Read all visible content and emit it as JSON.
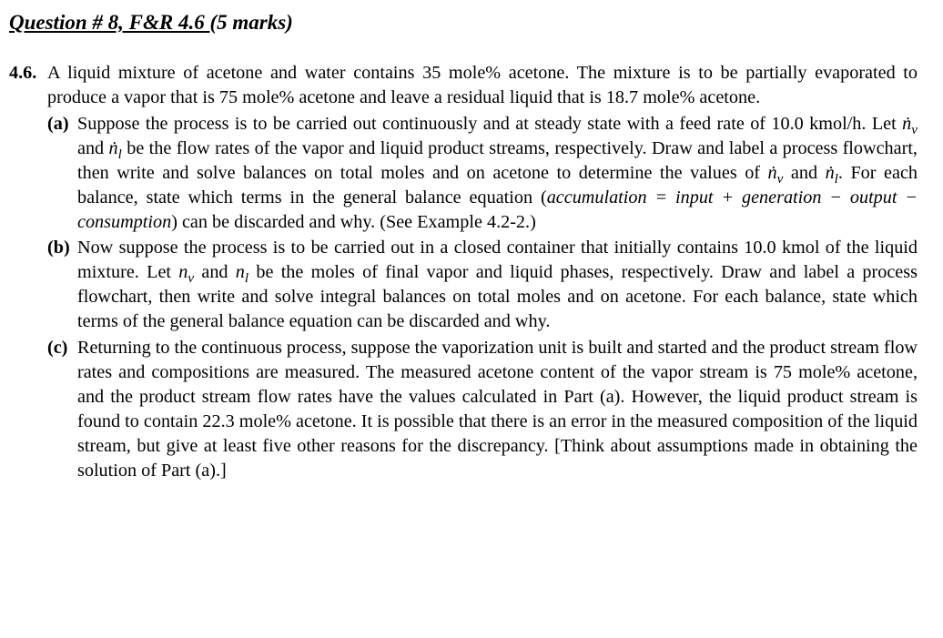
{
  "colors": {
    "text": "#000000",
    "background": "#ffffff"
  },
  "typography": {
    "body_family": "Times New Roman, serif",
    "body_size_pt": 15,
    "heading_size_pt": 17,
    "heading_weight": "bold",
    "heading_style": "italic"
  },
  "heading_prefix": "Question # 8, F&R 4.6 ",
  "heading_suffix": "(5 marks)",
  "problem_number": "4.6.",
  "problem_intro_1": "A liquid mixture of acetone and water contains 35 mole% acetone. The mixture is to be partially evaporated to produce a vapor that is 75 mole% acetone and leave a residual liquid that is 18.7 mole% acetone.",
  "parts": {
    "a": {
      "label": "(a)",
      "t1": "Suppose the process is to be carried out continuously and at steady state with a feed rate of 10.0 kmol/h. Let ",
      "nv": "ṅ",
      "sub_v": "v",
      "t2": " and ",
      "nl": "ṅ",
      "sub_l": "l",
      "t3": " be the flow rates of the vapor and liquid product streams, respectively. Draw and label a process flowchart, then write and solve balances on total moles and on acetone to determine the values of ",
      "t4": " and ",
      "t5": ". For each balance, state which terms in the general balance equation (",
      "eq": "accumulation = input + generation − output − consumption",
      "t6": ") can be discarded and why. (See Example 4.2-2.)"
    },
    "b": {
      "label": "(b)",
      "t1": "Now suppose the process is to be carried out in a closed container that initially contains 10.0 kmol of the liquid mixture. Let ",
      "nv": "n",
      "sub_v": "v",
      "t2": " and ",
      "nl": "n",
      "sub_l": "l",
      "t3": " be the moles of final vapor and liquid phases, respectively. Draw and label a process flowchart, then write and solve integral balances on total moles and on acetone. For each balance, state which terms of the general balance equation can be discarded and why."
    },
    "c": {
      "label": "(c)",
      "t1": "Returning to the continuous process, suppose the vaporization unit is built and started and the product stream flow rates and compositions are measured. The measured acetone content of the vapor stream is 75 mole% acetone, and the product stream flow rates have the values calculated in Part (a). However, the liquid product stream is found to contain 22.3 mole% acetone. It is possible that there is an error in the measured composition of the liquid stream, but give at least five other reasons for the discrepancy. [Think about assumptions made in obtaining the solution of Part (a).]"
    }
  }
}
